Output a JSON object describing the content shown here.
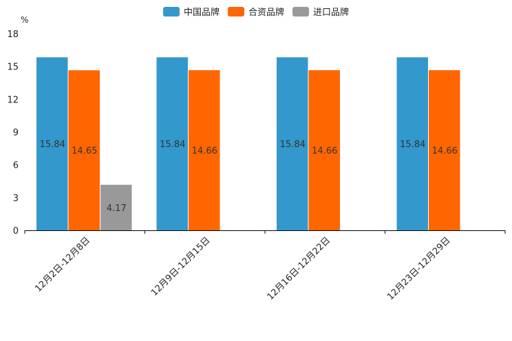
{
  "chart_data": {
    "type": "bar",
    "title": "",
    "xlabel": "",
    "ylabel": "%",
    "ylim": [
      0,
      18
    ],
    "yticks": [
      0,
      3,
      6,
      9,
      12,
      15,
      18
    ],
    "categories": [
      "12月2日-12月8日",
      "12月9日-12月15日",
      "12月16日-12月22日",
      "12月23日-12月29日"
    ],
    "series": [
      {
        "name": "中国品牌",
        "color": "#3398CC",
        "values": [
          15.84,
          15.84,
          15.84,
          15.84
        ],
        "labels": [
          "15.84",
          "15.84",
          "15.84",
          "15.84"
        ]
      },
      {
        "name": "合资品牌",
        "color": "#FF6600",
        "values": [
          14.65,
          14.66,
          14.66,
          14.66
        ],
        "labels": [
          "14.65",
          "14.66",
          "14.66",
          "14.66"
        ]
      },
      {
        "name": "进口品牌",
        "color": "#999999",
        "values": [
          4.17,
          null,
          null,
          null
        ],
        "labels": [
          "4.17",
          null,
          null,
          null
        ]
      }
    ],
    "legend": "top-center",
    "grid": false
  }
}
